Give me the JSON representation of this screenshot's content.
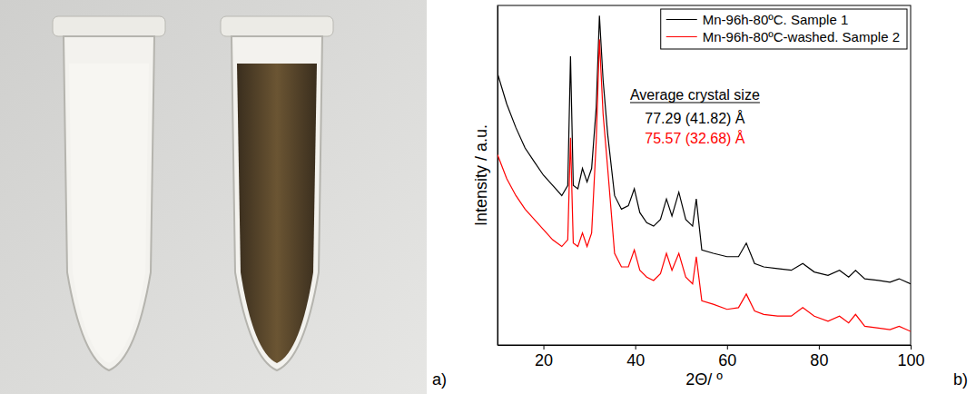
{
  "photo": {
    "label": "a)"
  },
  "chart_data": {
    "type": "line",
    "panel_label": "b)",
    "x_label": "2Θ/ º",
    "y_label": "Intensity / a.u.",
    "legend": "upper right",
    "grid": false,
    "tick_labels": "x",
    "xlim": [
      10,
      100
    ],
    "xticks": [
      20,
      40,
      60,
      80,
      100
    ],
    "ylim": [
      0,
      100
    ],
    "annotation": {
      "title": "Average crystal size",
      "texts": [
        "77.29 (41.82) Å",
        "75.57 (32.68) Å"
      ]
    },
    "x": [
      10,
      12,
      14,
      16,
      18,
      20,
      22,
      24,
      25.3,
      25.9,
      26.5,
      27.5,
      28.5,
      29.5,
      30.5,
      31.5,
      32.2,
      33,
      34,
      35.5,
      37,
      38.5,
      39.8,
      41,
      42.5,
      44,
      45.5,
      46.8,
      48,
      49.5,
      51,
      52.5,
      53.3,
      54.5,
      57,
      60,
      62.5,
      64.2,
      66,
      68,
      71,
      74,
      76.5,
      79,
      82,
      84.5,
      86.5,
      88,
      90,
      93,
      95.5,
      97.5,
      100
    ],
    "series": [
      {
        "name": "Mn-96h-80ºC. Sample 1",
        "color": "#000000",
        "line_style": "solid",
        "values": [
          80,
          71,
          64,
          58,
          54,
          50,
          47,
          44,
          47,
          85,
          47,
          46,
          52,
          48,
          52,
          70,
          97,
          78,
          62,
          44,
          40,
          41,
          46,
          39,
          36,
          35,
          37,
          43,
          38,
          45,
          37,
          35,
          43,
          28,
          27,
          26,
          26,
          30,
          24,
          23,
          22.5,
          22,
          24,
          21.5,
          20.5,
          22,
          20,
          22,
          19.5,
          19,
          18.5,
          19.5,
          18
        ]
      },
      {
        "name": "Mn-96h-80ºC-washed. Sample 2",
        "color": "#ff0000",
        "line_style": "solid",
        "values": [
          56,
          49,
          44,
          40,
          37,
          34,
          31,
          29,
          31,
          61,
          30,
          29,
          33,
          29,
          33,
          60,
          90,
          68,
          52,
          27,
          23,
          23,
          28,
          22,
          20,
          19,
          21,
          27,
          22,
          27,
          20,
          18,
          26,
          13,
          12,
          10.5,
          11,
          15,
          10,
          9,
          8.5,
          8.5,
          11,
          8.5,
          7,
          8.5,
          6.5,
          9,
          5.5,
          5,
          4.5,
          5.5,
          4
        ]
      }
    ]
  }
}
